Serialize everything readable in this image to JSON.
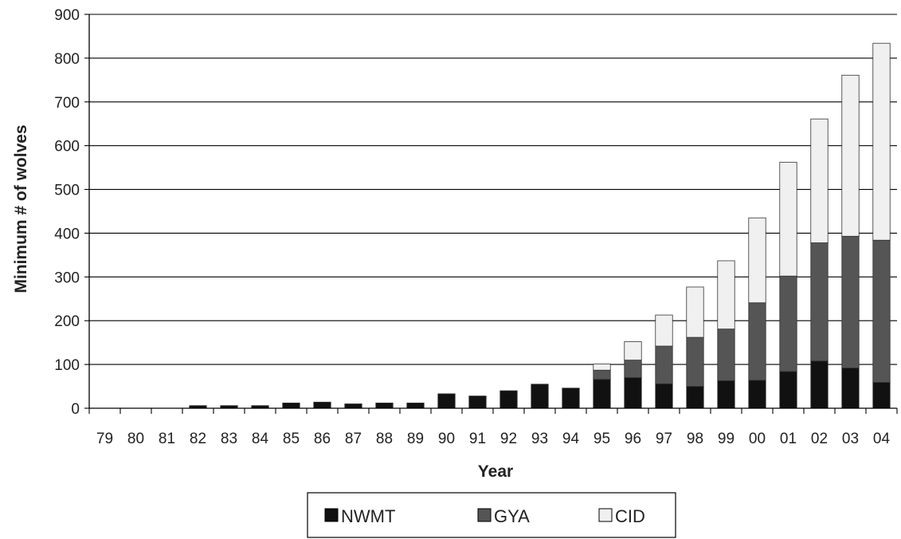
{
  "chart_data": {
    "type": "bar",
    "stacked": true,
    "xlabel": "Year",
    "ylabel": "Minimum # of wolves",
    "ylim": [
      0,
      900
    ],
    "yticks": [
      0,
      100,
      200,
      300,
      400,
      500,
      600,
      700,
      800,
      900
    ],
    "grid": true,
    "legend_position": "bottom",
    "categories": [
      "79",
      "80",
      "81",
      "82",
      "83",
      "84",
      "85",
      "86",
      "87",
      "88",
      "89",
      "90",
      "91",
      "92",
      "93",
      "94",
      "95",
      "96",
      "97",
      "98",
      "99",
      "00",
      "01",
      "02",
      "03",
      "04"
    ],
    "series": [
      {
        "name": "NWMT",
        "color": "#111111",
        "values": [
          0,
          0,
          0,
          6,
          6,
          6,
          12,
          14,
          10,
          12,
          12,
          33,
          28,
          40,
          55,
          46,
          66,
          70,
          56,
          50,
          63,
          64,
          84,
          108,
          92,
          59
        ]
      },
      {
        "name": "GYA",
        "color": "#555555",
        "values": [
          0,
          0,
          0,
          0,
          0,
          0,
          0,
          0,
          0,
          0,
          0,
          0,
          0,
          0,
          0,
          0,
          21,
          40,
          86,
          112,
          118,
          177,
          218,
          270,
          301,
          325
        ]
      },
      {
        "name": "CID",
        "color": "#f0f0f0",
        "values": [
          0,
          0,
          0,
          0,
          0,
          0,
          0,
          0,
          0,
          0,
          0,
          0,
          0,
          0,
          0,
          0,
          14,
          42,
          71,
          115,
          156,
          194,
          260,
          283,
          368,
          450
        ]
      }
    ]
  }
}
